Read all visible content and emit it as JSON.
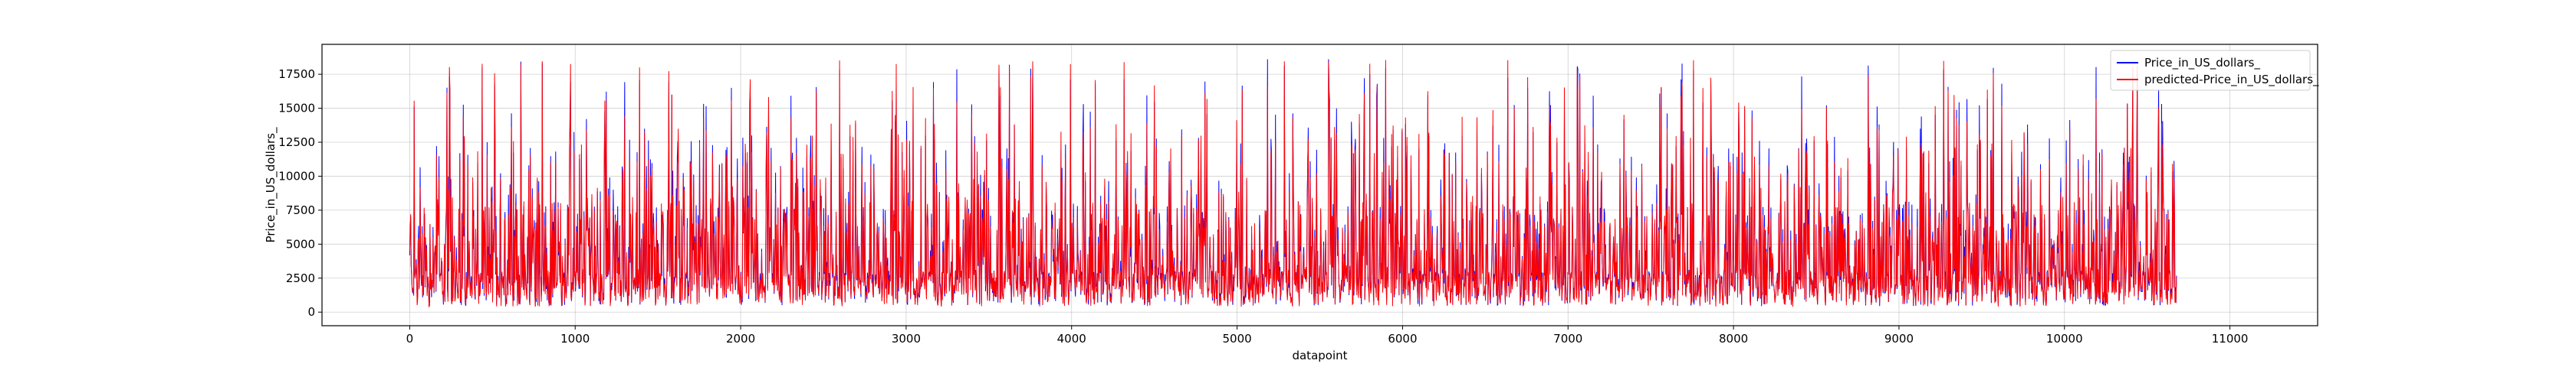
{
  "chart_data": {
    "type": "line",
    "title": "",
    "xlabel": "datapoint",
    "ylabel": "Price_in_US_dollars_",
    "xlim": [
      -530,
      11530
    ],
    "ylim": [
      -1000,
      19700
    ],
    "xticks": [
      0,
      1000,
      2000,
      3000,
      4000,
      5000,
      6000,
      7000,
      8000,
      9000,
      10000,
      11000
    ],
    "xtick_labels": [
      "0",
      "1000",
      "2000",
      "3000",
      "4000",
      "5000",
      "6000",
      "7000",
      "8000",
      "9000",
      "10000",
      "11000"
    ],
    "yticks": [
      0,
      2500,
      5000,
      7500,
      10000,
      12500,
      15000,
      17500
    ],
    "ytick_labels": [
      "0",
      "2500",
      "5000",
      "7500",
      "10000",
      "12500",
      "15000",
      "17500"
    ],
    "grid": true,
    "legend_position": "top-right",
    "n_points": 10680,
    "series": [
      {
        "name": "Price_in_US_dollars_",
        "color": "#0000ff",
        "value_range": [
          400,
          18800
        ],
        "typical_range": [
          500,
          9000
        ]
      },
      {
        "name": "predicted-Price_in_US_dollars_",
        "color": "#ff0000",
        "value_range": [
          400,
          18600
        ],
        "typical_range": [
          500,
          9000
        ]
      }
    ]
  }
}
